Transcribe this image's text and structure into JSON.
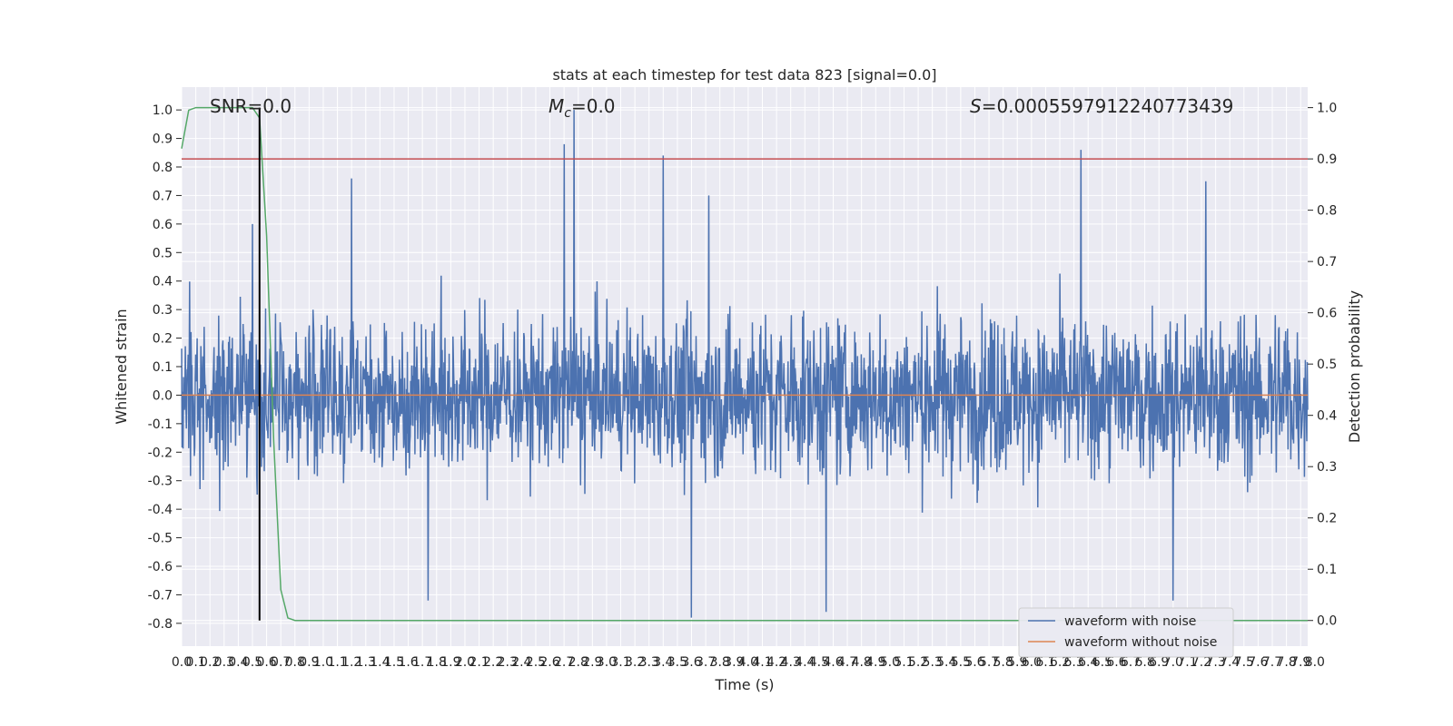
{
  "chart_data": {
    "type": "line",
    "title": "stats at each timestep for test data 823 [signal=0.0]",
    "xlabel": "Time (s)",
    "ylabel": "Whitened strain",
    "y2label": "Detection probability",
    "xlim": [
      0.0,
      7.95
    ],
    "ylim": [
      -0.88,
      1.08
    ],
    "y2lim": [
      -0.05,
      1.04
    ],
    "x_tick_step": 0.1,
    "y_ticks": [
      -0.8,
      -0.7,
      -0.6,
      -0.5,
      -0.4,
      -0.3,
      -0.2,
      -0.1,
      0.0,
      0.1,
      0.2,
      0.3,
      0.4,
      0.5,
      0.6,
      0.7,
      0.8,
      0.9,
      1.0
    ],
    "y2_ticks": [
      0.0,
      0.1,
      0.2,
      0.3,
      0.4,
      0.5,
      0.6,
      0.7,
      0.8,
      0.9,
      1.0
    ],
    "grid": true,
    "legend_position": "bottom-right",
    "annotations": {
      "snr": "SNR=0.0",
      "mc_symbol": "M",
      "mc_subscript": "c",
      "mc_value": "=0.0",
      "s_symbol": "S",
      "s_value": "=0.0005597912240773439"
    },
    "threshold_y2": 0.9,
    "vline_x": 0.55,
    "series": [
      {
        "name": "waveform with noise",
        "color": "#4c72b0",
        "axis": "left",
        "description_level": "dense noise, typical envelope about ±0.45 with peaks to ~1.0",
        "peaks": [
          {
            "x": 0.5,
            "y": 0.6
          },
          {
            "x": 1.2,
            "y": 0.76
          },
          {
            "x": 2.7,
            "y": 0.88
          },
          {
            "x": 2.77,
            "y": 1.0
          },
          {
            "x": 3.4,
            "y": 0.84
          },
          {
            "x": 3.72,
            "y": 0.7
          },
          {
            "x": 6.35,
            "y": 0.86
          },
          {
            "x": 7.23,
            "y": 0.75
          },
          {
            "x": 3.6,
            "y": -0.78
          },
          {
            "x": 4.55,
            "y": -0.76
          },
          {
            "x": 1.74,
            "y": -0.72
          },
          {
            "x": 7.0,
            "y": -0.72
          }
        ]
      },
      {
        "name": "waveform without noise",
        "color": "#dd8452",
        "axis": "left",
        "x": [
          0.0,
          7.95
        ],
        "y": [
          0.0,
          0.0
        ]
      },
      {
        "name": "detection probability",
        "color": "#55a868",
        "axis": "right",
        "x": [
          0.0,
          0.05,
          0.1,
          0.2,
          0.3,
          0.4,
          0.45,
          0.5,
          0.55,
          0.6,
          0.65,
          0.7,
          0.75,
          0.8,
          1.0,
          2.0,
          3.0,
          4.0,
          5.0,
          6.0,
          7.0,
          7.95
        ],
        "y": [
          0.92,
          0.995,
          1.0,
          1.0,
          1.0,
          1.0,
          1.0,
          1.0,
          0.98,
          0.75,
          0.35,
          0.06,
          0.005,
          0.0,
          0.0,
          0.0,
          0.0,
          0.0,
          0.0,
          0.0,
          0.0,
          0.0
        ]
      }
    ]
  }
}
